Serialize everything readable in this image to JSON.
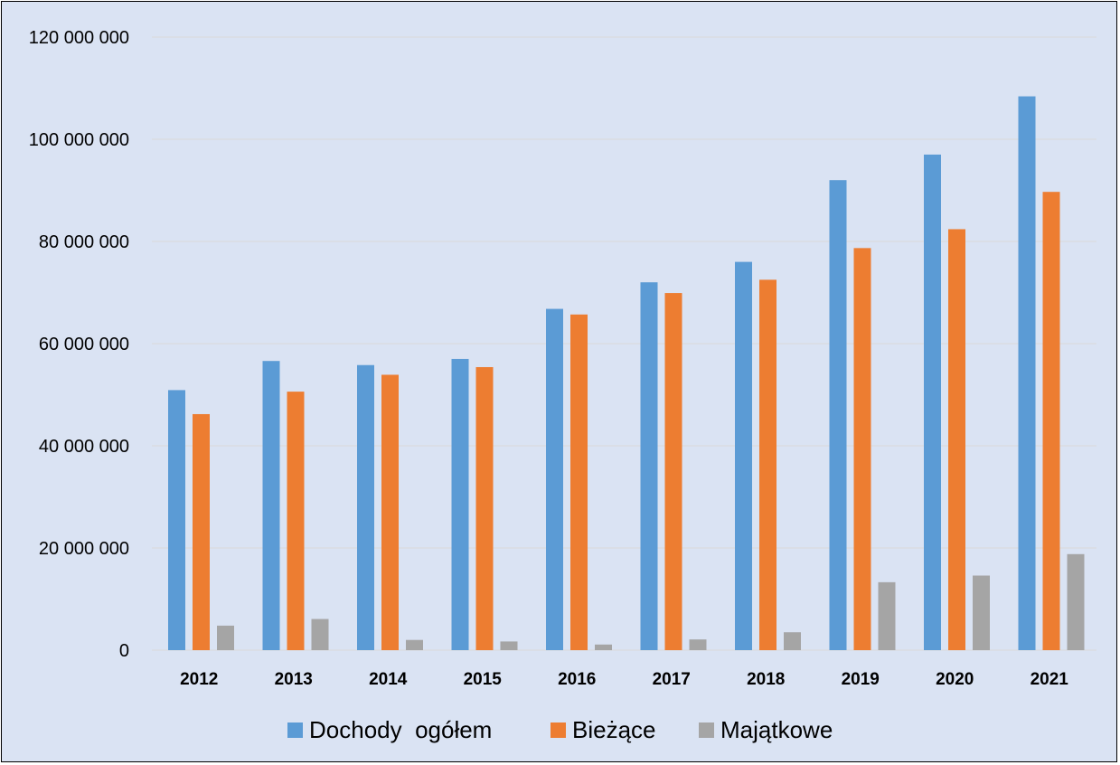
{
  "chart_data": {
    "type": "bar",
    "title": "",
    "xlabel": "",
    "ylabel": "",
    "ylim": [
      0,
      120000000
    ],
    "yticks": [
      0,
      20000000,
      40000000,
      60000000,
      80000000,
      100000000,
      120000000
    ],
    "ytick_labels": [
      "0",
      "20 000 000",
      "40 000 000",
      "60 000 000",
      "80 000 000",
      "100 000 000",
      "120 000 000"
    ],
    "categories": [
      "2012",
      "2013",
      "2014",
      "2015",
      "2016",
      "2017",
      "2018",
      "2019",
      "2020",
      "2021"
    ],
    "series": [
      {
        "name": "Dochody  ogółem",
        "color": "#5B9BD5",
        "values": [
          50900000,
          56600000,
          55800000,
          57000000,
          66800000,
          72000000,
          76000000,
          92000000,
          97000000,
          108400000
        ]
      },
      {
        "name": "Bieżące",
        "color": "#ED7D31",
        "values": [
          46200000,
          50600000,
          53900000,
          55400000,
          65700000,
          69900000,
          72500000,
          78700000,
          82400000,
          89700000
        ]
      },
      {
        "name": "Majątkowe",
        "color": "#A5A5A5",
        "values": [
          4800000,
          6100000,
          2000000,
          1700000,
          1100000,
          2100000,
          3500000,
          13300000,
          14600000,
          18800000
        ]
      }
    ],
    "grid": true,
    "legend_position": "bottom",
    "background_color": "#DAE3F3",
    "gridline_color": "#D9D9D9"
  }
}
